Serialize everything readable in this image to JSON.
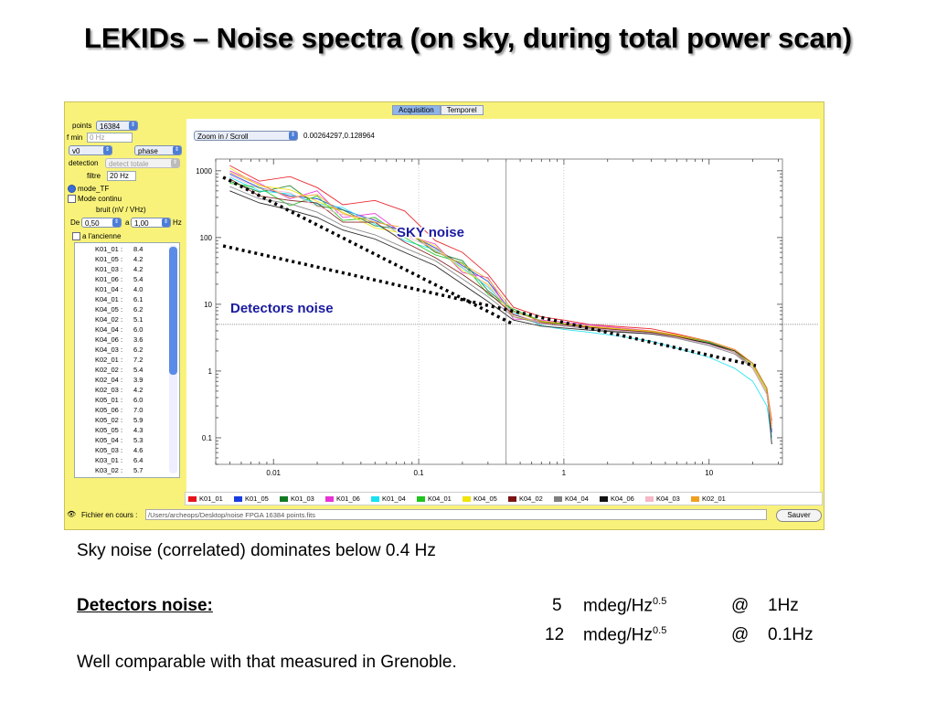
{
  "slide": {
    "title": "LEKIDs – Noise spectra (on sky, during total power scan)",
    "text_line1": "Sky noise (correlated) dominates below 0.4 Hz",
    "det_label": "Detectors noise:",
    "det_row1": {
      "value": "5",
      "unit": "mdeg/Hz",
      "exp": "0.5",
      "at": "@",
      "freq": "1Hz"
    },
    "det_row2": {
      "value": "12",
      "unit": "mdeg/Hz",
      "exp": "0.5",
      "at": "@",
      "freq": "0.1Hz"
    },
    "text_last": "Well comparable with that measured in Grenoble."
  },
  "app": {
    "tabs": [
      "Acquisition",
      "Temporel"
    ],
    "points_label": "points",
    "points_value": "16384",
    "fmin_label": "f min",
    "fmin_placeholder": "0 Hz",
    "v0_value": "v0",
    "phase_value": "phase",
    "detection_label": "detection",
    "detection_value": "detect totale",
    "filtre_label": "filtre",
    "filtre_value": "20 Hz",
    "mode_tf": "mode_TF",
    "mode_continu": "Mode continu",
    "bruit_label": "bruit (nV / VHz)",
    "de_label": "De",
    "de_value": "0,50",
    "a_label": "a",
    "a_value": "1,00",
    "hz_label": "Hz",
    "ancienne_label": "a l'ancienne",
    "detectors": [
      {
        "name": "K01_01 :",
        "value": "8.4"
      },
      {
        "name": "K01_05 :",
        "value": "4.2"
      },
      {
        "name": "K01_03 :",
        "value": "4.2"
      },
      {
        "name": "K01_06 :",
        "value": "5.4"
      },
      {
        "name": "K01_04 :",
        "value": "4.0"
      },
      {
        "name": "K04_01 :",
        "value": "6.1"
      },
      {
        "name": "K04_05 :",
        "value": "6.2"
      },
      {
        "name": "K04_02 :",
        "value": "5.1"
      },
      {
        "name": "K04_04 :",
        "value": "6.0"
      },
      {
        "name": "K04_06 :",
        "value": "3.6"
      },
      {
        "name": "K04_03 :",
        "value": "6.2"
      },
      {
        "name": "K02_01 :",
        "value": "7.2"
      },
      {
        "name": "K02_02 :",
        "value": "5.4"
      },
      {
        "name": "K02_04 :",
        "value": "3.9"
      },
      {
        "name": "K02_03 :",
        "value": "4.2"
      },
      {
        "name": "K05_01 :",
        "value": "6.0"
      },
      {
        "name": "K05_06 :",
        "value": "7.0"
      },
      {
        "name": "K05_02 :",
        "value": "5.9"
      },
      {
        "name": "K05_05 :",
        "value": "4.3"
      },
      {
        "name": "K05_04 :",
        "value": "5.3"
      },
      {
        "name": "K05_03 :",
        "value": "4.6"
      },
      {
        "name": "K03_01 :",
        "value": "6.4"
      },
      {
        "name": "K03_02 :",
        "value": "5.7"
      }
    ],
    "zoom_value": "Zoom in / Scroll",
    "coords_readout": "0.00264297,0.128964",
    "fichier_label": "Fichier en cours :",
    "fichier_path": "/Users/archeops/Desktop/noise FPGA 16384 points.fits",
    "save_label": "Sauver"
  },
  "chart_data": {
    "type": "line",
    "title": "",
    "xlabel": "",
    "ylabel": "",
    "xscale": "log",
    "yscale": "log",
    "xlim": [
      0.004,
      32
    ],
    "ylim": [
      0.04,
      1500
    ],
    "grid": "off",
    "xticks": [
      "0.01",
      "0.1",
      "1",
      "10"
    ],
    "yticks": [
      "0.1",
      "1",
      "10",
      "100",
      "1000"
    ],
    "annotations": [
      {
        "text": "SKY noise",
        "style": "dotted-line",
        "line": [
          [
            0.0045,
            800
          ],
          [
            0.45,
            5
          ]
        ]
      },
      {
        "text": "Detectors noise",
        "style": "dotted-line",
        "line": [
          [
            0.0045,
            75
          ],
          [
            21,
            1.2
          ]
        ]
      }
    ],
    "series": [
      {
        "name": "K01_01",
        "color": "#e8141b",
        "x": [
          0.005,
          0.008,
          0.013,
          0.02,
          0.03,
          0.05,
          0.08,
          0.13,
          0.2,
          0.3,
          0.45,
          0.7,
          1,
          1.5,
          2.5,
          4,
          6,
          10,
          15,
          20,
          25,
          27
        ],
        "values": [
          1200,
          700,
          820,
          560,
          310,
          360,
          250,
          90,
          60,
          28,
          9,
          6.5,
          5.8,
          5,
          4.6,
          4.3,
          3.6,
          2.8,
          2.1,
          1.3,
          0.55,
          0.18
        ]
      },
      {
        "name": "K01_05",
        "color": "#1a3ce0",
        "x": [
          0.005,
          0.008,
          0.013,
          0.02,
          0.03,
          0.05,
          0.08,
          0.13,
          0.2,
          0.3,
          0.45,
          0.7,
          1,
          1.5,
          2.5,
          4,
          6,
          10,
          15,
          20,
          25,
          27
        ],
        "values": [
          900,
          560,
          420,
          380,
          260,
          180,
          120,
          70,
          38,
          22,
          7,
          5.2,
          4.8,
          4.4,
          4,
          3.7,
          3.2,
          2.5,
          1.9,
          1.2,
          0.5,
          0.12
        ]
      },
      {
        "name": "K01_03",
        "color": "#127a22",
        "x": [
          0.005,
          0.008,
          0.013,
          0.02,
          0.03,
          0.05,
          0.08,
          0.13,
          0.2,
          0.3,
          0.45,
          0.7,
          1,
          1.5,
          2.5,
          4,
          6,
          10,
          15,
          20,
          25,
          27
        ],
        "values": [
          700,
          480,
          600,
          300,
          260,
          150,
          130,
          60,
          45,
          16,
          8,
          5.5,
          5,
          4.5,
          4.1,
          3.8,
          3.3,
          2.6,
          1.9,
          1.1,
          0.45,
          0.15
        ]
      },
      {
        "name": "K01_06",
        "color": "#e832d6",
        "x": [
          0.005,
          0.008,
          0.013,
          0.02,
          0.03,
          0.05,
          0.08,
          0.13,
          0.2,
          0.3,
          0.45,
          0.7,
          1,
          1.5,
          2.5,
          4,
          6,
          10,
          15,
          20,
          25,
          27
        ],
        "values": [
          1000,
          650,
          380,
          500,
          200,
          230,
          110,
          80,
          30,
          25,
          6,
          5.8,
          5.4,
          4.9,
          4.4,
          4,
          3.5,
          2.7,
          2,
          1.2,
          0.5,
          0.16
        ]
      },
      {
        "name": "K01_04",
        "color": "#18e2f0",
        "x": [
          0.005,
          0.008,
          0.013,
          0.02,
          0.03,
          0.05,
          0.08,
          0.13,
          0.2,
          0.3,
          0.45,
          0.7,
          1,
          1.5,
          2.5,
          4,
          6,
          10,
          15,
          20,
          25,
          27
        ],
        "values": [
          800,
          500,
          450,
          320,
          280,
          160,
          90,
          65,
          35,
          18,
          7.5,
          4.8,
          4.2,
          3.8,
          3.3,
          2.8,
          2.2,
          1.6,
          1.1,
          0.7,
          0.3,
          0.1
        ]
      },
      {
        "name": "K04_01",
        "color": "#1fc41f",
        "x": [
          0.005,
          0.008,
          0.013,
          0.02,
          0.03,
          0.05,
          0.08,
          0.13,
          0.2,
          0.3,
          0.45,
          0.7,
          1,
          1.5,
          2.5,
          4,
          6,
          10,
          15,
          20,
          25,
          27
        ],
        "values": [
          650,
          560,
          300,
          420,
          180,
          200,
          100,
          55,
          42,
          14,
          8.5,
          5.6,
          5.1,
          4.6,
          4.2,
          3.9,
          3.4,
          2.7,
          2,
          1.2,
          0.5,
          0.14
        ]
      },
      {
        "name": "K04_05",
        "color": "#f0e40a",
        "x": [
          0.005,
          0.008,
          0.013,
          0.02,
          0.03,
          0.05,
          0.08,
          0.13,
          0.2,
          0.3,
          0.45,
          0.7,
          1,
          1.5,
          2.5,
          4,
          6,
          10,
          15,
          20,
          25,
          27
        ],
        "values": [
          1100,
          600,
          520,
          350,
          240,
          140,
          115,
          75,
          32,
          20,
          6.5,
          5.4,
          5,
          4.6,
          4.2,
          3.9,
          3.4,
          2.6,
          2,
          1.2,
          0.5,
          0.15
        ]
      },
      {
        "name": "K04_02",
        "color": "#7a1414",
        "x": [
          0.005,
          0.008,
          0.013,
          0.02,
          0.03,
          0.05,
          0.08,
          0.13,
          0.2,
          0.3,
          0.45,
          0.7,
          1,
          1.5,
          2.5,
          4,
          6,
          10,
          15,
          20,
          25,
          27
        ],
        "values": [
          760,
          420,
          360,
          330,
          170,
          170,
          85,
          50,
          28,
          15,
          7,
          5.3,
          4.9,
          4.5,
          4.1,
          3.8,
          3.3,
          2.6,
          1.9,
          1.1,
          0.45,
          0.13
        ]
      },
      {
        "name": "K04_04",
        "color": "#7e7e7e",
        "x": [
          0.005,
          0.008,
          0.013,
          0.02,
          0.03,
          0.05,
          0.08,
          0.13,
          0.2,
          0.3,
          0.45,
          0.7,
          1,
          1.5,
          2.5,
          4,
          6,
          10,
          15,
          20,
          25,
          27
        ],
        "values": [
          580,
          380,
          320,
          240,
          150,
          110,
          70,
          45,
          24,
          13,
          6.5,
          5.1,
          4.7,
          4.3,
          3.9,
          3.6,
          3.1,
          2.4,
          1.8,
          1.1,
          0.45,
          0.13
        ]
      },
      {
        "name": "K04_06",
        "color": "#111111",
        "x": [
          0.005,
          0.008,
          0.013,
          0.02,
          0.03,
          0.05,
          0.08,
          0.13,
          0.2,
          0.3,
          0.45,
          0.7,
          1,
          1.5,
          2.5,
          4,
          6,
          10,
          15,
          20,
          25,
          27
        ],
        "values": [
          500,
          330,
          260,
          200,
          130,
          95,
          60,
          38,
          20,
          11,
          5.8,
          4.7,
          4.4,
          4.1,
          3.8,
          3.6,
          3.2,
          2.6,
          2,
          1.3,
          0.55,
          0.08
        ]
      },
      {
        "name": "K04_03",
        "color": "#f5b8c8",
        "x": [
          0.005,
          0.008,
          0.013,
          0.02,
          0.03,
          0.05,
          0.08,
          0.13,
          0.2,
          0.3,
          0.45,
          0.7,
          1,
          1.5,
          2.5,
          4,
          6,
          10,
          15,
          20,
          25,
          27
        ],
        "values": [
          850,
          540,
          470,
          290,
          220,
          190,
          105,
          68,
          36,
          19,
          7.2,
          5.2,
          4.8,
          4.4,
          4,
          3.7,
          3.2,
          2.5,
          1.9,
          1.1,
          0.45,
          0.14
        ]
      },
      {
        "name": "K02_01",
        "color": "#f0a020",
        "x": [
          0.005,
          0.008,
          0.013,
          0.02,
          0.03,
          0.05,
          0.08,
          0.13,
          0.2,
          0.3,
          0.45,
          0.7,
          1,
          1.5,
          2.5,
          4,
          6,
          10,
          15,
          20,
          25,
          27
        ],
        "values": [
          950,
          620,
          400,
          440,
          230,
          170,
          140,
          62,
          40,
          24,
          7.8,
          5.6,
          5.2,
          4.7,
          4.3,
          4,
          3.5,
          2.8,
          2.1,
          1.3,
          0.55,
          0.16
        ]
      }
    ]
  }
}
